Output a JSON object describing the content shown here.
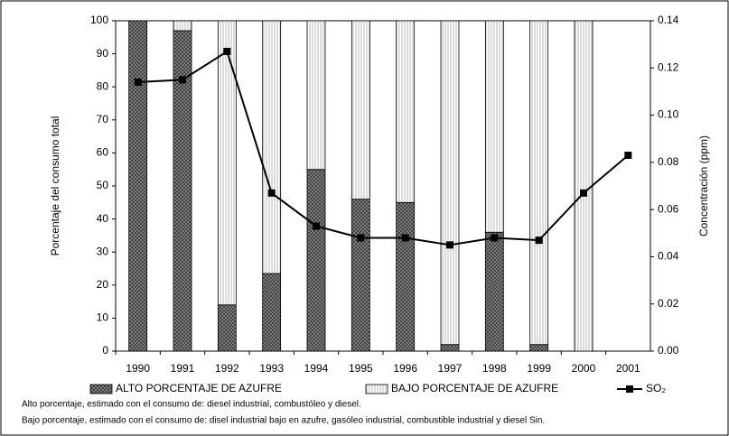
{
  "chart_data": {
    "type": "bar",
    "categories": [
      "1990",
      "1991",
      "1992",
      "1993",
      "1994",
      "1995",
      "1996",
      "1997",
      "1998",
      "1999",
      "2000",
      "2001"
    ],
    "series": [
      {
        "name": "ALTO PORCENTAJE DE AZUFRE",
        "color": "#8c8c8c",
        "values": [
          100,
          97,
          14,
          23.5,
          55,
          46,
          45,
          2,
          36,
          2,
          0,
          0
        ]
      },
      {
        "name": "BAJO PORCENTAJE DE AZUFRE",
        "color": "#ffffff",
        "values": [
          0,
          3,
          86,
          76.5,
          45,
          54,
          55,
          98,
          64,
          98,
          100,
          0
        ]
      },
      {
        "name": "SO₂",
        "color": "#000000",
        "axis": "y2",
        "type": "line",
        "values": [
          0.114,
          0.115,
          0.127,
          0.067,
          0.053,
          0.048,
          0.048,
          0.045,
          0.048,
          0.047,
          0.067,
          0.083
        ]
      }
    ],
    "ylabel": "Porcentaje del consumo total",
    "y2label": "Concentración (ppm)",
    "ylim": [
      0,
      100
    ],
    "yticks": [
      0,
      10,
      20,
      30,
      40,
      50,
      60,
      70,
      80,
      90,
      100
    ],
    "y2lim": [
      0,
      0.14
    ],
    "y2ticks": [
      {
        "value": 0,
        "label": "0.00"
      },
      {
        "value": 0.02,
        "label": "0.02"
      },
      {
        "value": 0.04,
        "label": "0.04"
      },
      {
        "value": 0.06,
        "label": "0.06"
      },
      {
        "value": 0.08,
        "label": "0.08"
      },
      {
        "value": 0.1,
        "label": "0.10"
      },
      {
        "value": 0.12,
        "label": "0.12"
      },
      {
        "value": 0.14,
        "label": "0.14"
      }
    ],
    "stacked": true,
    "legend": "bottom",
    "notes": [
      "Alto porcentaje, estimado con el consumo de: diesel industrial, combustóleo y diesel.",
      "Bajo porcentaje, estimado con el consumo de: disel industrial bajo en azufre, gasóleo industrial, combustible industrial y diesel Sin."
    ]
  }
}
